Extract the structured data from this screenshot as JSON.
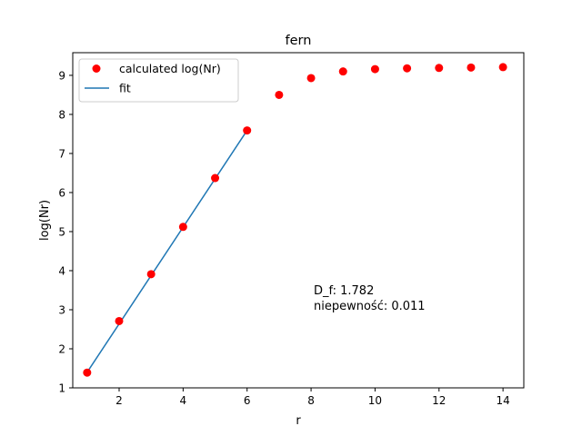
{
  "chart_data": {
    "type": "scatter",
    "title": "fern",
    "xlabel": "r",
    "ylabel": "log(Nr)",
    "xlim": [
      0.55,
      14.65
    ],
    "ylim": [
      1.0,
      9.58
    ],
    "xticks": [
      "2",
      "4",
      "6",
      "8",
      "10",
      "12",
      "14"
    ],
    "yticks": [
      "1",
      "2",
      "3",
      "4",
      "5",
      "6",
      "7",
      "8",
      "9"
    ],
    "grid": false,
    "legend_position": "top-left",
    "series": [
      {
        "name": "calculated log(Nr)",
        "kind": "scatter",
        "color": "#ff0000",
        "x": [
          1,
          2,
          3,
          4,
          5,
          6,
          7,
          8,
          9,
          10,
          11,
          12,
          13,
          14
        ],
        "y": [
          1.39,
          2.71,
          3.91,
          5.12,
          6.37,
          7.59,
          8.5,
          8.93,
          9.1,
          9.16,
          9.18,
          9.19,
          9.2,
          9.21
        ]
      },
      {
        "name": "fit",
        "kind": "line",
        "color": "#1f77b4",
        "x": [
          1,
          6
        ],
        "y": [
          1.4,
          7.59
        ]
      }
    ],
    "annotations": [
      "D_f: 1.782",
      "niepewność: 0.011"
    ]
  }
}
